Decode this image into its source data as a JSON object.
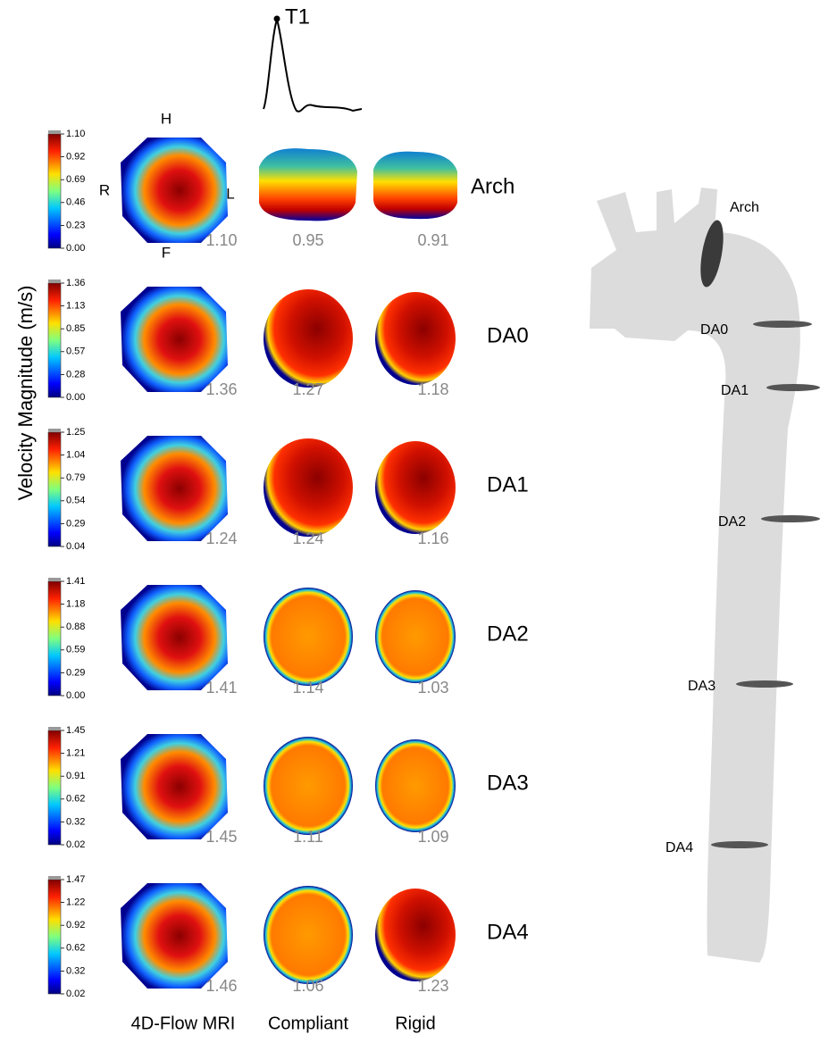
{
  "figure": {
    "waveform_label": "T1",
    "axis_label": "Velocity Magnitude (m/s)",
    "orientation": {
      "top": "H",
      "right": "L",
      "bottom": "F",
      "left": "R"
    },
    "columns": [
      "4D-Flow MRI",
      "Compliant",
      "Rigid"
    ],
    "rows": [
      {
        "name": "Arch",
        "ticks": [
          "1.10",
          "0.92",
          "0.69",
          "0.46",
          "0.23",
          "0.00"
        ],
        "maxima": [
          "1.10",
          "0.95",
          "0.91"
        ]
      },
      {
        "name": "DA0",
        "ticks": [
          "1.36",
          "1.13",
          "0.85",
          "0.57",
          "0.28",
          "0.00"
        ],
        "maxima": [
          "1.36",
          "1.27",
          "1.18"
        ]
      },
      {
        "name": "DA1",
        "ticks": [
          "1.25",
          "1.04",
          "0.79",
          "0.54",
          "0.29",
          "0.04"
        ],
        "maxima": [
          "1.24",
          "1.24",
          "1.16"
        ]
      },
      {
        "name": "DA2",
        "ticks": [
          "1.41",
          "1.18",
          "0.88",
          "0.59",
          "0.29",
          "0.00"
        ],
        "maxima": [
          "1.41",
          "1.14",
          "1.03"
        ]
      },
      {
        "name": "DA3",
        "ticks": [
          "1.45",
          "1.21",
          "0.91",
          "0.62",
          "0.32",
          "0.02"
        ],
        "maxima": [
          "1.45",
          "1.11",
          "1.09"
        ]
      },
      {
        "name": "DA4",
        "ticks": [
          "1.47",
          "1.22",
          "0.92",
          "0.62",
          "0.32",
          "0.02"
        ],
        "maxima": [
          "1.46",
          "1.06",
          "1.23"
        ]
      }
    ],
    "aorta_labels": [
      "Arch",
      "DA0",
      "DA1",
      "DA2",
      "DA3",
      "DA4"
    ]
  }
}
